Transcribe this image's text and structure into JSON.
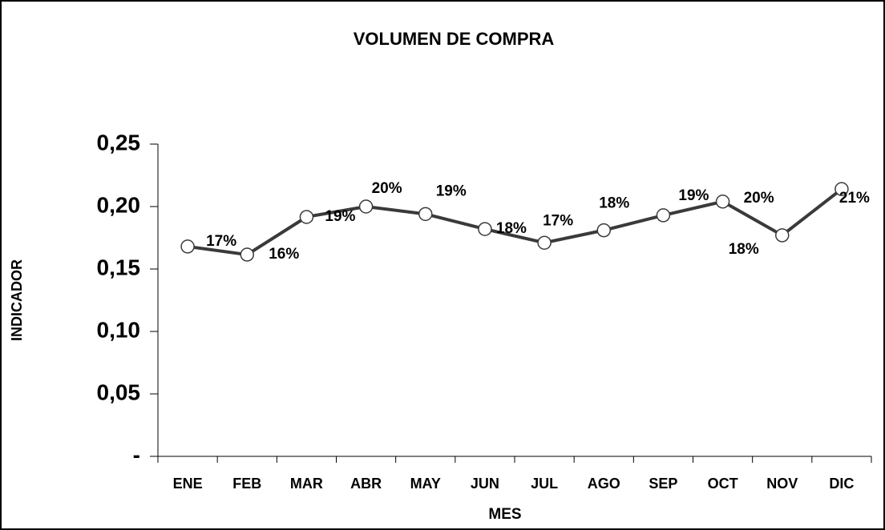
{
  "chart_data": {
    "type": "line",
    "title": "VOLUMEN DE COMPRA",
    "x_label": "MES",
    "y_label": "INDICADOR",
    "categories": [
      "ENE",
      "FEB",
      "MAR",
      "ABR",
      "MAY",
      "JUN",
      "JUL",
      "AGO",
      "SEP",
      "OCT",
      "NOV",
      "DIC"
    ],
    "series": [
      {
        "name": "INDICADOR",
        "color": "#3a3a3a",
        "values": [
          0.168,
          0.1615,
          0.1917,
          0.2,
          0.194,
          0.182,
          0.171,
          0.181,
          0.193,
          0.204,
          0.177,
          0.214
        ],
        "value_labels": [
          "17%",
          "16%",
          "19%",
          "20%",
          "19%",
          "18%",
          "17%",
          "18%",
          "19%",
          "20%",
          "18%",
          "21%"
        ]
      }
    ],
    "ylim": [
      0,
      0.25
    ],
    "yticks": [
      {
        "value": 0,
        "label": "-"
      },
      {
        "value": 0.05,
        "label": "0,05"
      },
      {
        "value": 0.1,
        "label": "0,10"
      },
      {
        "value": 0.15,
        "label": "0,15"
      },
      {
        "value": 0.2,
        "label": "0,20"
      },
      {
        "value": 0.25,
        "label": "0,25"
      }
    ],
    "grid": false
  }
}
